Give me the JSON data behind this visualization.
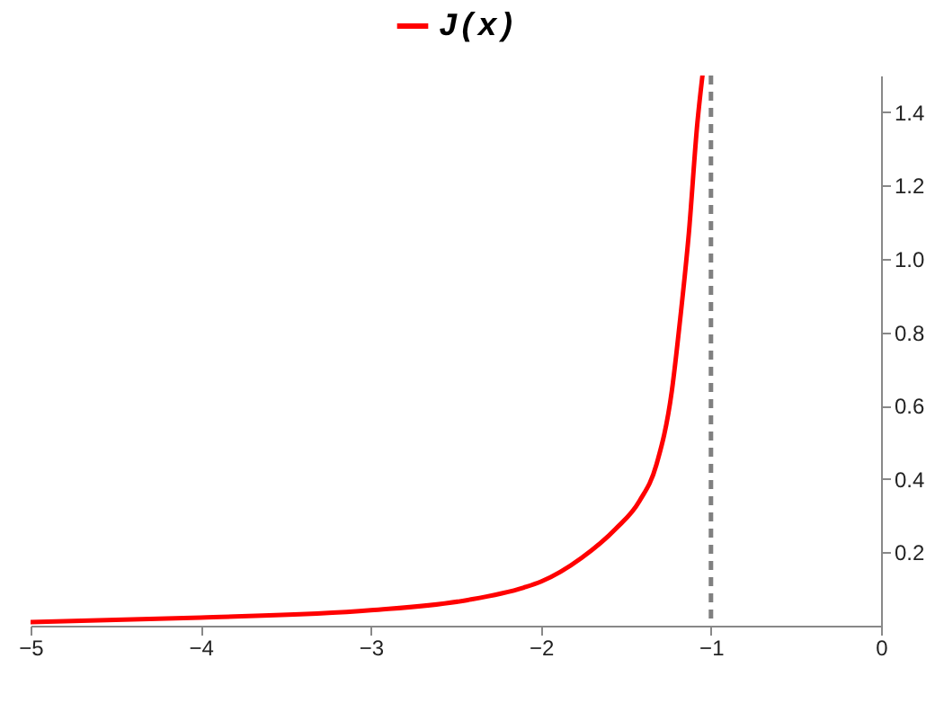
{
  "chart_data": {
    "type": "line",
    "x": [
      -5,
      -4,
      -3,
      -2.43,
      -2.1,
      -2,
      -1.76,
      -1.56,
      -1.42,
      -1.32,
      -1.23,
      -1.18,
      -1.13,
      -1.08,
      -1.05
    ],
    "series": [
      {
        "name": "J(x)",
        "color": "#ff0000",
        "values": [
          0.01,
          0.022,
          0.042,
          0.07,
          0.104,
          0.12,
          0.185,
          0.264,
          0.34,
          0.44,
          0.64,
          0.84,
          1.07,
          1.37,
          1.5
        ]
      }
    ],
    "xlim": [
      -5,
      0
    ],
    "xticks": [
      -5,
      -4,
      -3,
      -2,
      -1,
      0
    ],
    "ylim": [
      0,
      1.5
    ],
    "yticks": [
      0.2,
      0.4,
      0.6,
      0.8,
      {
        "value": 1,
        "label": "1.0"
      },
      1.2,
      1.4
    ],
    "ref_lines": [
      {
        "axis": "x",
        "value": -1,
        "color": "#808080",
        "line_style": "dashed"
      }
    ],
    "legend": "top",
    "grid": false,
    "marker": "none",
    "line_style": "solid"
  }
}
